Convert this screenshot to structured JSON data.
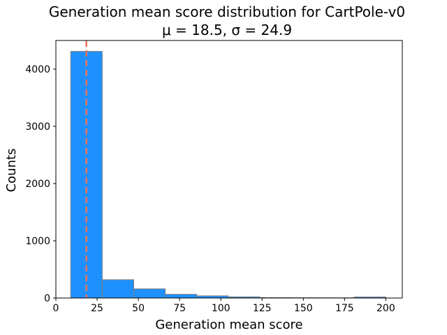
{
  "chart_data": {
    "type": "bar",
    "title": "Generation mean score distribution for CartPole-v0",
    "subtitle": "μ = 18.5, σ = 24.9",
    "xlabel": "Generation mean score",
    "ylabel": "Counts",
    "xlim": [
      0,
      210
    ],
    "ylim": [
      0,
      4500
    ],
    "xticks": [
      0,
      25,
      50,
      75,
      100,
      125,
      150,
      175,
      200
    ],
    "yticks": [
      0,
      1000,
      2000,
      3000,
      4000
    ],
    "bins": [
      {
        "start": 9.0,
        "end": 28.1,
        "count": 4310
      },
      {
        "start": 28.1,
        "end": 47.2,
        "count": 320
      },
      {
        "start": 47.2,
        "end": 66.3,
        "count": 160
      },
      {
        "start": 66.3,
        "end": 85.4,
        "count": 65
      },
      {
        "start": 85.4,
        "end": 104.5,
        "count": 38
      },
      {
        "start": 104.5,
        "end": 123.6,
        "count": 20
      },
      {
        "start": 123.6,
        "end": 142.7,
        "count": 8
      },
      {
        "start": 142.7,
        "end": 161.8,
        "count": 5
      },
      {
        "start": 161.8,
        "end": 180.9,
        "count": 4
      },
      {
        "start": 180.9,
        "end": 200.0,
        "count": 18
      }
    ],
    "mean_line": {
      "x": 18.5
    },
    "grid": false,
    "colors": {
      "bar_fill": "#1e90ff",
      "bar_edge": "#808080",
      "mean_line": "#e8735a"
    }
  }
}
